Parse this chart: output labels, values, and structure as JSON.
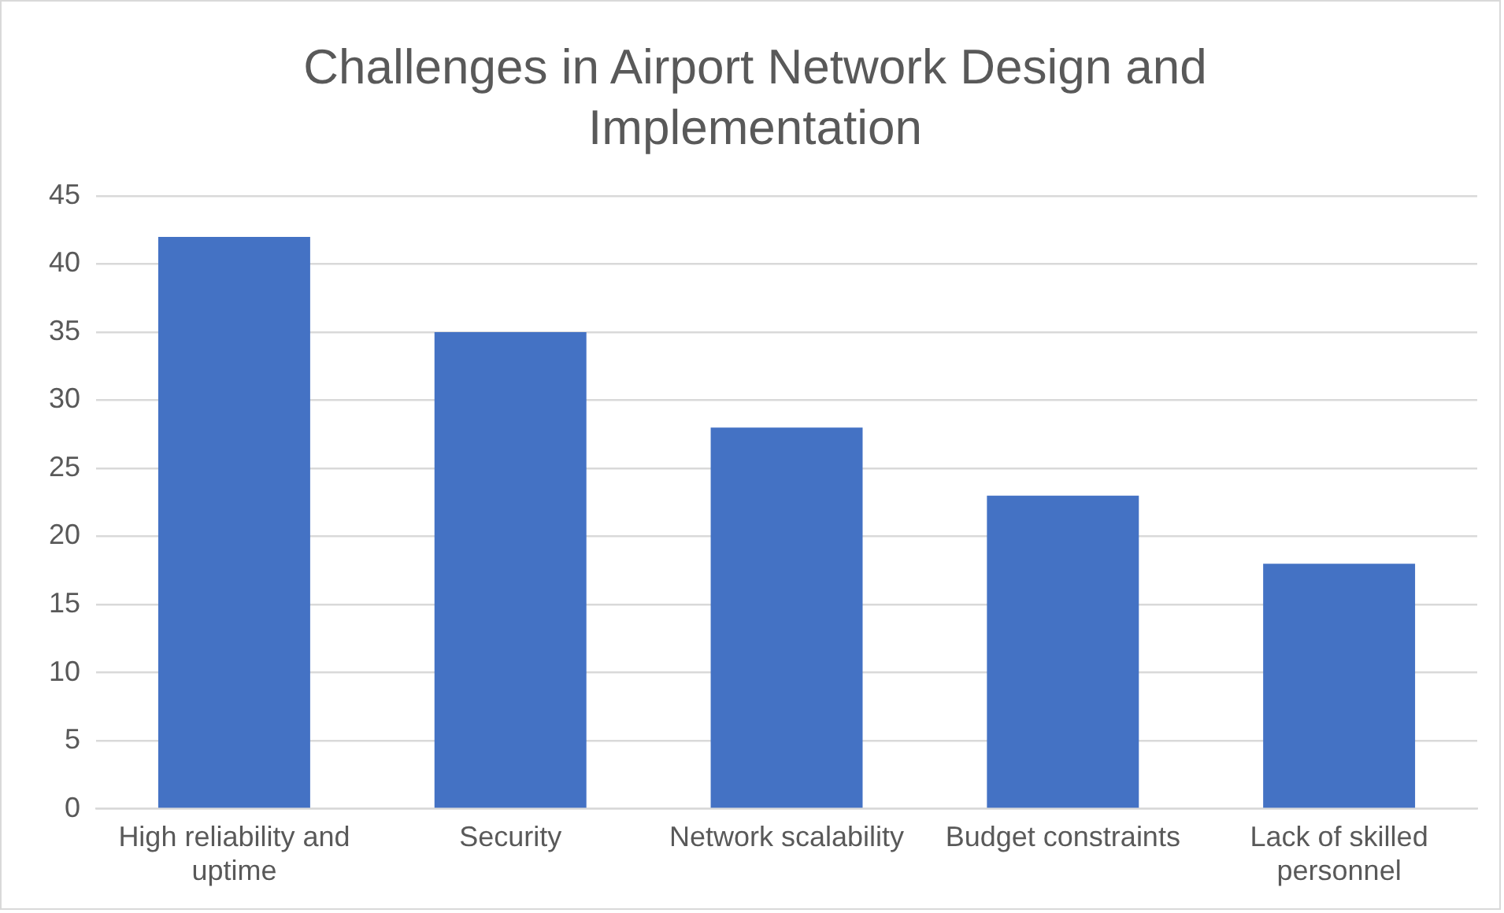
{
  "chart_data": {
    "type": "bar",
    "title": "Challenges in Airport Network Design and Implementation",
    "categories": [
      "High reliability and uptime",
      "Security",
      "Network scalability",
      "Budget constraints",
      "Lack of skilled personnel"
    ],
    "values": [
      42,
      35,
      28,
      23,
      18
    ],
    "color": "#4472c4",
    "ylim": [
      0,
      45
    ],
    "yticks": [
      0,
      5,
      10,
      15,
      20,
      25,
      30,
      35,
      40,
      45
    ],
    "grid": "y",
    "legend": false
  }
}
